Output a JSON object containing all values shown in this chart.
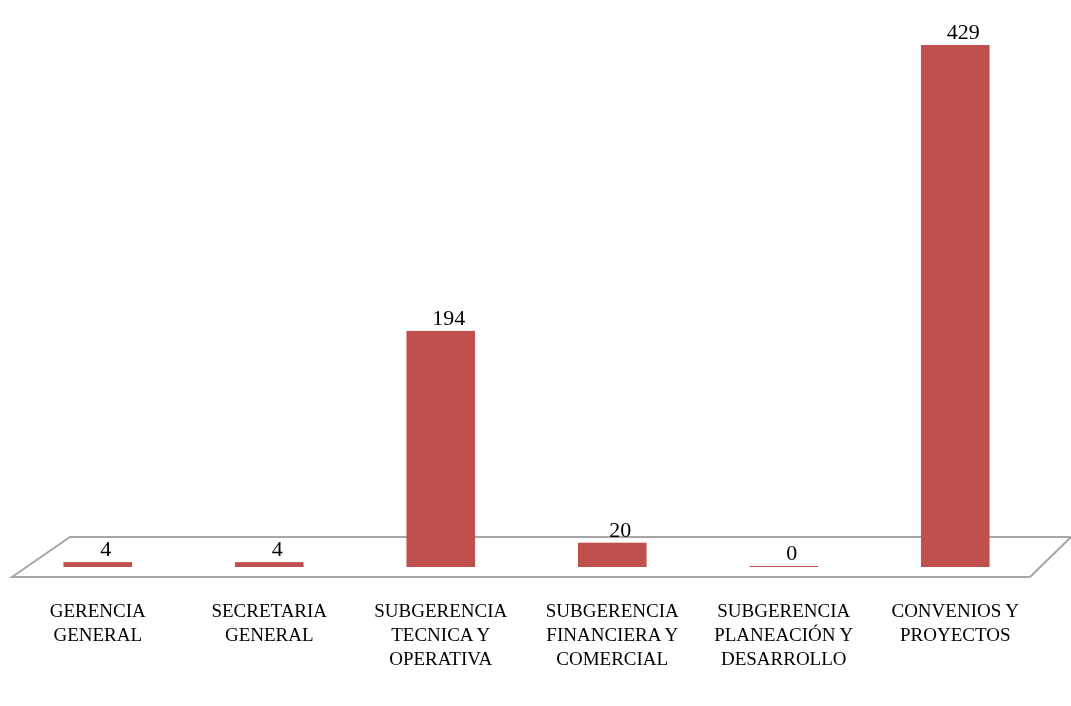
{
  "chart_data": {
    "type": "bar",
    "categories": [
      "GERENCIA GENERAL",
      "SECRETARIA GENERAL",
      "SUBGERENCIA TECNICA Y OPERATIVA",
      "SUBGERENCIA FINANCIERA Y COMERCIAL",
      "SUBGERENCIA PLANEACIÓN Y DESARROLLO",
      "CONVENIOS Y PROYECTOS"
    ],
    "values": [
      4,
      4,
      194,
      20,
      0,
      429
    ],
    "color": "#c0504d",
    "data_labels": true
  }
}
